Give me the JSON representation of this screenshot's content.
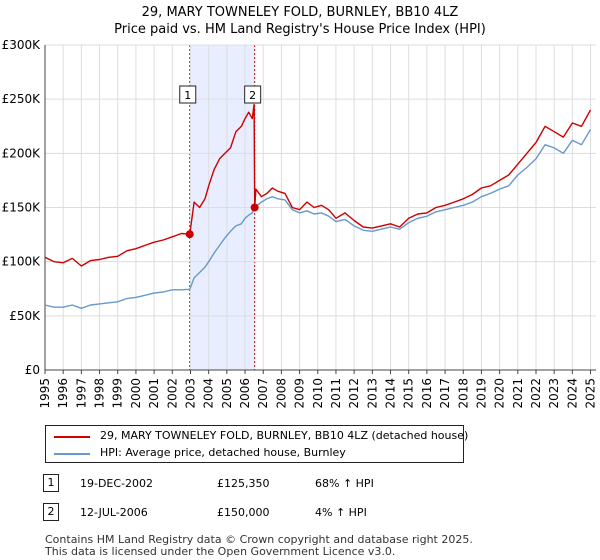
{
  "title": "29, MARY TOWNELEY FOLD, BURNLEY, BB10 4LZ",
  "subtitle": "Price paid vs. HM Land Registry's House Price Index (HPI)",
  "colors": {
    "property": "#cc0000",
    "hpi": "#6699cc",
    "band": "#e8eeff",
    "grid": "#dddddd"
  },
  "chart_data": {
    "type": "line",
    "title": "29, MARY TOWNELEY FOLD, BURNLEY, BB10 4LZ",
    "xlabel": "",
    "ylabel": "",
    "xlim": [
      1995.0,
      2025.3
    ],
    "ylim": [
      0,
      300000
    ],
    "y_ticks": [
      0,
      50000,
      100000,
      150000,
      200000,
      250000,
      300000
    ],
    "y_tick_labels": [
      "£0",
      "£50K",
      "£100K",
      "£150K",
      "£200K",
      "£250K",
      "£300K"
    ],
    "x_ticks": [
      1995,
      1996,
      1997,
      1998,
      1999,
      2000,
      2001,
      2002,
      2003,
      2004,
      2005,
      2006,
      2007,
      2008,
      2009,
      2010,
      2011,
      2012,
      2013,
      2014,
      2015,
      2016,
      2017,
      2018,
      2019,
      2020,
      2021,
      2022,
      2023,
      2024,
      2025
    ],
    "x_tick_labels": [
      "1995",
      "1996",
      "1997",
      "1998",
      "1999",
      "2000",
      "2001",
      "2002",
      "2003",
      "2004",
      "2005",
      "2006",
      "2007",
      "2008",
      "2009",
      "2010",
      "2011",
      "2012",
      "2013",
      "2014",
      "2015",
      "2016",
      "2017",
      "2018",
      "2019",
      "2020",
      "2021",
      "2022",
      "2023",
      "2024",
      "2025"
    ],
    "grid": true,
    "shaded_range": [
      2002.96,
      2006.53
    ],
    "series": [
      {
        "name": "29, MARY TOWNELEY FOLD, BURNLEY, BB10 4LZ (detached house)",
        "x": [
          1995.0,
          1995.5,
          1996.0,
          1996.5,
          1997.0,
          1997.5,
          1998.0,
          1998.5,
          1999.0,
          1999.5,
          2000.0,
          2000.5,
          2001.0,
          2001.5,
          2002.0,
          2002.5,
          2002.96,
          2003.2,
          2003.5,
          2003.8,
          2004.0,
          2004.3,
          2004.6,
          2004.9,
          2005.2,
          2005.5,
          2005.8,
          2006.0,
          2006.2,
          2006.4,
          2006.5,
          2006.53,
          2006.6,
          2006.9,
          2007.2,
          2007.5,
          2007.8,
          2008.2,
          2008.6,
          2009.0,
          2009.4,
          2009.8,
          2010.2,
          2010.6,
          2011.0,
          2011.5,
          2012.0,
          2012.5,
          2013.0,
          2013.5,
          2014.0,
          2014.5,
          2015.0,
          2015.5,
          2016.0,
          2016.5,
          2017.0,
          2017.5,
          2018.0,
          2018.5,
          2019.0,
          2019.5,
          2020.0,
          2020.5,
          2021.0,
          2021.5,
          2022.0,
          2022.5,
          2023.0,
          2023.5,
          2024.0,
          2024.5,
          2025.0
        ],
        "values": [
          104000,
          100000,
          99000,
          103000,
          96000,
          101000,
          102000,
          104000,
          105000,
          110000,
          112000,
          115000,
          118000,
          120000,
          123000,
          126000,
          125350,
          155000,
          150000,
          158000,
          170000,
          185000,
          195000,
          200000,
          205000,
          220000,
          225000,
          232000,
          238000,
          232000,
          245000,
          150000,
          167000,
          160000,
          163000,
          168000,
          165000,
          163000,
          150000,
          148000,
          155000,
          150000,
          152000,
          148000,
          140000,
          145000,
          138000,
          132000,
          131000,
          133000,
          135000,
          132000,
          140000,
          144000,
          145000,
          150000,
          152000,
          155000,
          158000,
          162000,
          168000,
          170000,
          175000,
          180000,
          190000,
          200000,
          210000,
          225000,
          220000,
          215000,
          228000,
          225000,
          240000
        ]
      },
      {
        "name": "HPI: Average price, detached house, Burnley",
        "x": [
          1995.0,
          1995.5,
          1996.0,
          1996.5,
          1997.0,
          1997.5,
          1998.0,
          1998.5,
          1999.0,
          1999.5,
          2000.0,
          2000.5,
          2001.0,
          2001.5,
          2002.0,
          2002.5,
          2002.96,
          2003.2,
          2003.5,
          2003.8,
          2004.0,
          2004.3,
          2004.6,
          2004.9,
          2005.2,
          2005.5,
          2005.8,
          2006.0,
          2006.2,
          2006.4,
          2006.53,
          2006.9,
          2007.2,
          2007.5,
          2007.8,
          2008.2,
          2008.6,
          2009.0,
          2009.4,
          2009.8,
          2010.2,
          2010.6,
          2011.0,
          2011.5,
          2012.0,
          2012.5,
          2013.0,
          2013.5,
          2014.0,
          2014.5,
          2015.0,
          2015.5,
          2016.0,
          2016.5,
          2017.0,
          2017.5,
          2018.0,
          2018.5,
          2019.0,
          2019.5,
          2020.0,
          2020.5,
          2021.0,
          2021.5,
          2022.0,
          2022.5,
          2023.0,
          2023.5,
          2024.0,
          2024.5,
          2025.0
        ],
        "values": [
          60000,
          58000,
          58000,
          60000,
          57000,
          60000,
          61000,
          62000,
          63000,
          66000,
          67000,
          69000,
          71000,
          72000,
          74000,
          74000,
          74500,
          85000,
          90000,
          95000,
          100000,
          108000,
          115000,
          122000,
          128000,
          133000,
          135000,
          140000,
          143000,
          145000,
          150000,
          155000,
          158000,
          160000,
          158000,
          157000,
          148000,
          145000,
          147000,
          144000,
          145000,
          142000,
          137000,
          139000,
          133000,
          129000,
          128000,
          130000,
          132000,
          130000,
          136000,
          140000,
          142000,
          146000,
          148000,
          150000,
          152000,
          155000,
          160000,
          163000,
          167000,
          170000,
          180000,
          187000,
          195000,
          208000,
          205000,
          200000,
          212000,
          208000,
          222000
        ]
      }
    ],
    "markers": [
      {
        "label": "1",
        "x": 2002.96,
        "value": 125350
      },
      {
        "label": "2",
        "x": 2006.53,
        "value": 150000
      }
    ]
  },
  "legend": [
    {
      "label": "29, MARY TOWNELEY FOLD, BURNLEY, BB10 4LZ (detached house)"
    },
    {
      "label": "HPI: Average price, detached house, Burnley"
    }
  ],
  "transactions": [
    {
      "num": "1",
      "date": "19-DEC-2002",
      "price": "£125,350",
      "hpi": "68% ↑ HPI"
    },
    {
      "num": "2",
      "date": "12-JUL-2006",
      "price": "£150,000",
      "hpi": "4% ↑ HPI"
    }
  ],
  "footer": {
    "line1": "Contains HM Land Registry data © Crown copyright and database right 2025.",
    "line2": "This data is licensed under the Open Government Licence v3.0."
  }
}
